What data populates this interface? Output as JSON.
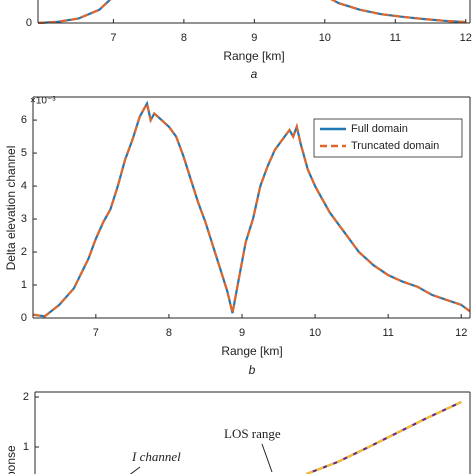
{
  "chart_data": [
    {
      "type": "line",
      "xlabel": "Range [km]",
      "caption": "a",
      "xlim": [
        5.93,
        12.06
      ],
      "xticks": [
        7,
        8,
        9,
        10,
        11,
        12
      ],
      "ylim": [
        0,
        1
      ],
      "yticks": [
        0
      ],
      "x": [
        5.93,
        6.2,
        6.5,
        6.8,
        7.0,
        7.2,
        9.6,
        9.9,
        10.2,
        10.5,
        10.8,
        11.1,
        11.4,
        11.7,
        12.0
      ],
      "series": [
        {
          "color": "#1f77b4",
          "values": [
            0,
            0.005,
            0.02,
            0.06,
            0.12,
            0.2,
            0.3,
            0.14,
            0.09,
            0.06,
            0.04,
            0.028,
            0.018,
            0.01,
            0.004
          ]
        },
        {
          "color": "#e0672a",
          "values": [
            0,
            0.005,
            0.02,
            0.06,
            0.12,
            0.2,
            0.3,
            0.14,
            0.09,
            0.06,
            0.04,
            0.028,
            0.018,
            0.01,
            0.004
          ]
        }
      ]
    },
    {
      "type": "line",
      "ylabel": "Delta elevation channel",
      "xlabel": "Range [km]",
      "caption": "b",
      "exponent_label": "×10⁻³",
      "xlim": [
        6.14,
        12.12
      ],
      "xticks": [
        7,
        8,
        9,
        10,
        11,
        12
      ],
      "ylim": [
        0,
        6.7
      ],
      "yticks": [
        0,
        1,
        2,
        3,
        4,
        5,
        6
      ],
      "legend": "top-right",
      "x": [
        6.14,
        6.3,
        6.5,
        6.7,
        6.9,
        7.0,
        7.1,
        7.2,
        7.3,
        7.4,
        7.5,
        7.6,
        7.65,
        7.7,
        7.75,
        7.8,
        7.9,
        8.0,
        8.1,
        8.2,
        8.3,
        8.4,
        8.5,
        8.6,
        8.7,
        8.8,
        8.87,
        8.95,
        9.05,
        9.15,
        9.25,
        9.35,
        9.45,
        9.55,
        9.65,
        9.7,
        9.75,
        9.8,
        9.9,
        10.0,
        10.1,
        10.2,
        10.3,
        10.4,
        10.5,
        10.6,
        10.8,
        11.0,
        11.2,
        11.4,
        11.6,
        11.8,
        12.0,
        12.12
      ],
      "series": [
        {
          "name": "Full domain",
          "color": "#1f77b4",
          "values": [
            0.1,
            0.05,
            0.4,
            0.9,
            1.8,
            2.4,
            2.9,
            3.3,
            4.0,
            4.8,
            5.4,
            6.1,
            6.3,
            6.5,
            6.0,
            6.2,
            6.0,
            5.8,
            5.5,
            4.9,
            4.2,
            3.5,
            2.9,
            2.2,
            1.5,
            0.8,
            0.15,
            1.1,
            2.3,
            3.0,
            4.0,
            4.6,
            5.1,
            5.4,
            5.7,
            5.5,
            5.8,
            5.3,
            4.5,
            4.0,
            3.6,
            3.2,
            2.9,
            2.6,
            2.3,
            2.0,
            1.6,
            1.3,
            1.1,
            0.95,
            0.7,
            0.55,
            0.4,
            0.2
          ]
        },
        {
          "name": "Truncated domain",
          "color": "#e0672a",
          "values": [
            0.1,
            0.05,
            0.4,
            0.9,
            1.8,
            2.4,
            2.9,
            3.3,
            4.0,
            4.8,
            5.4,
            6.1,
            6.3,
            6.5,
            6.0,
            6.2,
            6.0,
            5.8,
            5.5,
            4.9,
            4.2,
            3.5,
            2.9,
            2.2,
            1.5,
            0.8,
            0.15,
            1.1,
            2.3,
            3.0,
            4.0,
            4.6,
            5.1,
            5.4,
            5.7,
            5.5,
            5.8,
            5.3,
            4.5,
            4.0,
            3.6,
            3.2,
            2.9,
            2.6,
            2.3,
            2.0,
            1.6,
            1.3,
            1.1,
            0.95,
            0.7,
            0.55,
            0.4,
            0.2
          ]
        }
      ]
    },
    {
      "type": "line",
      "ylabel": "ponse",
      "xlim": [
        6.14,
        12.12
      ],
      "ylim": [
        0,
        2.1
      ],
      "yticks": [
        1,
        2
      ],
      "annotations": [
        "I channel",
        "LOS range"
      ],
      "x": [
        9.87,
        10.3,
        10.7,
        11.1,
        11.5,
        12.0
      ],
      "series": [
        {
          "color": "#6a2a87",
          "values": [
            0.46,
            0.7,
            0.98,
            1.27,
            1.56,
            1.9
          ]
        },
        {
          "color": "#f2c12e",
          "values": [
            0.46,
            0.7,
            0.98,
            1.27,
            1.56,
            1.9
          ]
        }
      ]
    }
  ]
}
